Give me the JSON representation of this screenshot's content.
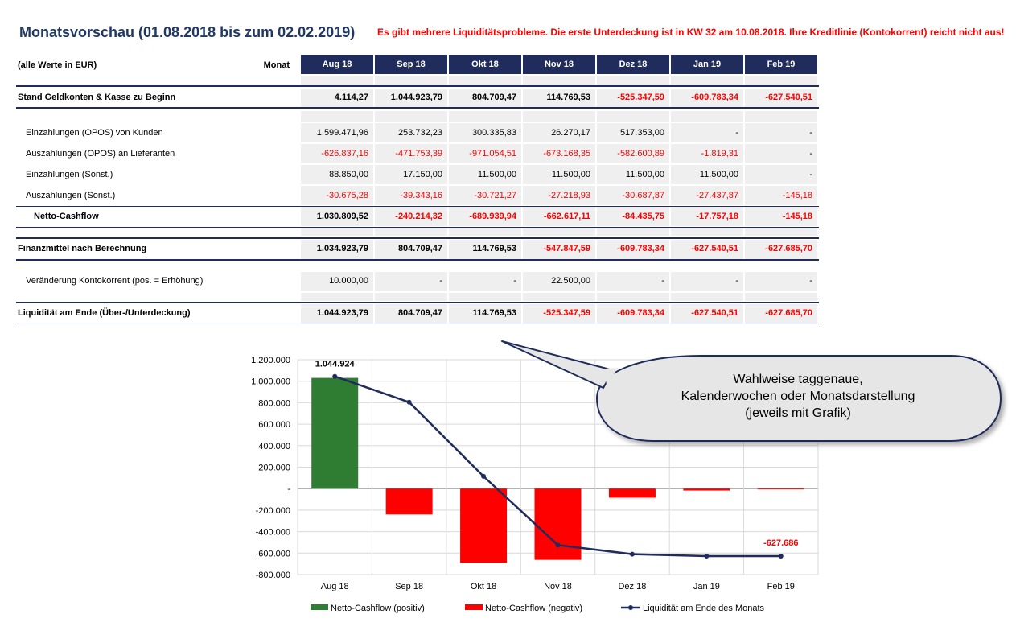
{
  "title": "Monatsvorschau  (01.08.2018 bis zum 02.02.2019)",
  "warning": "Es gibt mehrere Liquiditätsprobleme. Die erste Unterdeckung ist in KW 32 am 10.08.2018. Ihre Kreditlinie (Kontokorrent) reicht nicht aus!",
  "table": {
    "unit_label": "(alle Werte in EUR)",
    "month_label": "Monat",
    "months": [
      "Aug 18",
      "Sep 18",
      "Okt 18",
      "Nov 18",
      "Dez 18",
      "Jan 19",
      "Feb 19"
    ],
    "rows": [
      {
        "label": "Stand Geldkonten & Kasse zu Beginn",
        "bold": true,
        "values": [
          "4.114,27",
          "1.044.923,79",
          "804.709,47",
          "114.769,53",
          "-525.347,59",
          "-609.783,34",
          "-627.540,51"
        ]
      },
      {
        "label": "Einzahlungen (OPOS) von Kunden",
        "bold": false,
        "values": [
          "1.599.471,96",
          "253.732,23",
          "300.335,83",
          "26.270,17",
          "517.353,00",
          "-",
          "-"
        ]
      },
      {
        "label": "Auszahlungen (OPOS) an Lieferanten",
        "bold": false,
        "values": [
          "-626.837,16",
          "-471.753,39",
          "-971.054,51",
          "-673.168,35",
          "-582.600,89",
          "-1.819,31",
          "-"
        ]
      },
      {
        "label": "Einzahlungen (Sonst.)",
        "bold": false,
        "values": [
          "88.850,00",
          "17.150,00",
          "11.500,00",
          "11.500,00",
          "11.500,00",
          "11.500,00",
          "-"
        ]
      },
      {
        "label": "Auszahlungen (Sonst.)",
        "bold": false,
        "values": [
          "-30.675,28",
          "-39.343,16",
          "-30.721,27",
          "-27.218,93",
          "-30.687,87",
          "-27.437,87",
          "-145,18"
        ]
      },
      {
        "label": "Netto-Cashflow",
        "bold": true,
        "values": [
          "1.030.809,52",
          "-240.214,32",
          "-689.939,94",
          "-662.617,11",
          "-84.435,75",
          "-17.757,18",
          "-145,18"
        ]
      },
      {
        "label": "Finanzmittel nach Berechnung",
        "bold": true,
        "values": [
          "1.034.923,79",
          "804.709,47",
          "114.769,53",
          "-547.847,59",
          "-609.783,34",
          "-627.540,51",
          "-627.685,70"
        ]
      },
      {
        "label": "Veränderung Kontokorrent (pos. = Erhöhung)",
        "bold": false,
        "values": [
          "10.000,00",
          "-",
          "-",
          "22.500,00",
          "-",
          "-",
          "-"
        ]
      },
      {
        "label": "Liquidität am Ende (Über-/Unterdeckung)",
        "bold": true,
        "values": [
          "1.044.923,79",
          "804.709,47",
          "114.769,53",
          "-525.347,59",
          "-609.783,34",
          "-627.540,51",
          "-627.685,70"
        ]
      }
    ]
  },
  "callout": {
    "line1": "Wahlweise taggenaue,",
    "line2": "Kalenderwochen oder Monatsdarstellung",
    "line3": "(jeweils mit Grafik)"
  },
  "colors": {
    "positive_bar": "#2e7d32",
    "negative_bar": "#ff0000",
    "line": "#1f2c5c",
    "header_bg": "#1f2c5c"
  },
  "chart_data": {
    "type": "bar",
    "categories": [
      "Aug 18",
      "Sep 18",
      "Okt 18",
      "Nov 18",
      "Dez 18",
      "Jan 19",
      "Feb 19"
    ],
    "series": [
      {
        "name": "Netto-Cashflow (positiv)",
        "type": "bar",
        "values": [
          1030809.52,
          0,
          0,
          0,
          0,
          0,
          0
        ]
      },
      {
        "name": "Netto-Cashflow (negativ)",
        "type": "bar",
        "values": [
          0,
          -240214.32,
          -689939.94,
          -662617.11,
          -84435.75,
          -17757.18,
          -145.18
        ]
      },
      {
        "name": "Liquidität am Ende des Monats",
        "type": "line",
        "values": [
          1044923.79,
          804709.47,
          114769.53,
          -525347.59,
          -609783.34,
          -627540.51,
          -627685.7
        ]
      }
    ],
    "data_labels": [
      {
        "category": "Aug 18",
        "text": "1.044.924"
      },
      {
        "category": "Feb 19",
        "text": "-627.686"
      }
    ],
    "yticks": [
      "1.200.000",
      "1.000.000",
      "800.000",
      "600.000",
      "400.000",
      "200.000",
      "-",
      "-200.000",
      "-400.000",
      "-600.000",
      "-800.000"
    ],
    "ylim": [
      -800000,
      1200000
    ],
    "grid": true,
    "legend": "bottom"
  }
}
